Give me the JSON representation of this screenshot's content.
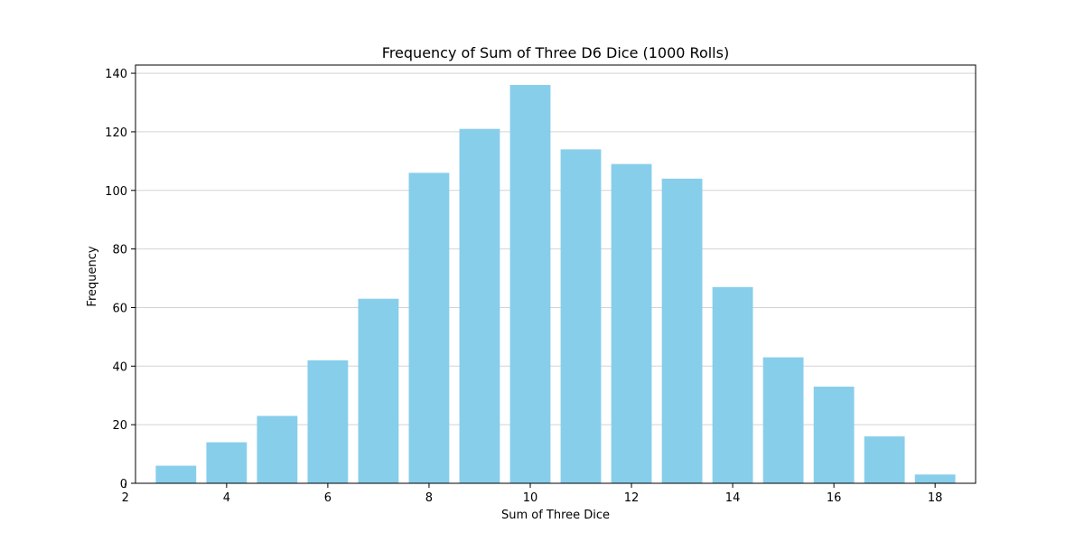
{
  "chart_data": {
    "type": "bar",
    "title": "Frequency of Sum of Three D6 Dice (1000 Rolls)",
    "xlabel": "Sum of Three Dice",
    "ylabel": "Frequency",
    "x": [
      3,
      4,
      5,
      6,
      7,
      8,
      9,
      10,
      11,
      12,
      13,
      14,
      15,
      16,
      17,
      18
    ],
    "values": [
      6,
      14,
      23,
      42,
      63,
      106,
      121,
      136,
      114,
      109,
      104,
      67,
      43,
      33,
      16,
      3
    ],
    "xlim": [
      2.2,
      18.8
    ],
    "ylim": [
      0,
      142.8
    ],
    "xticks": [
      2,
      4,
      6,
      8,
      10,
      12,
      14,
      16,
      18
    ],
    "yticks": [
      0,
      20,
      40,
      60,
      80,
      100,
      120,
      140
    ],
    "bar_color": "#87CEEB",
    "grid": "y",
    "grid_color": "#d3d3d3",
    "axis_color": "#000000"
  }
}
